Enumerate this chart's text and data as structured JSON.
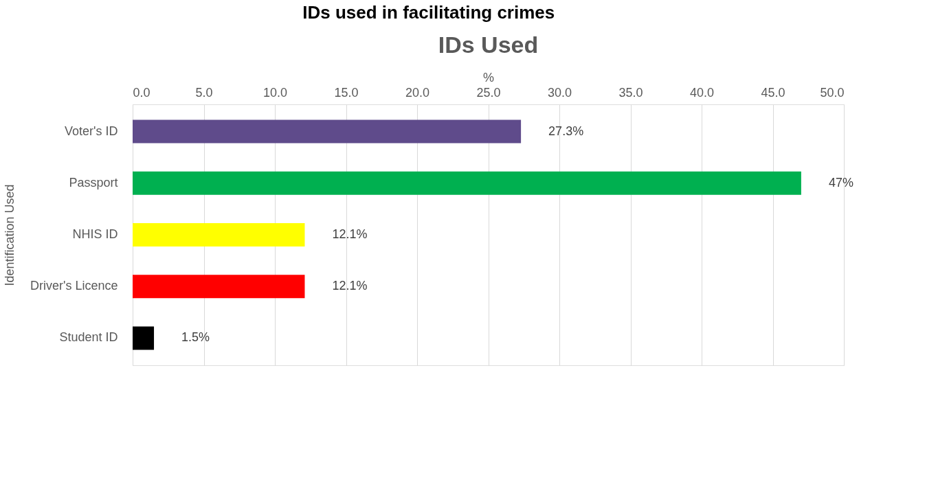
{
  "chart_data": {
    "type": "bar",
    "orientation": "horizontal",
    "title": "IDs used in facilitating crimes",
    "subtitle": "IDs Used",
    "xlabel": "%",
    "ylabel": "Identification Used",
    "categories": [
      "Voter's ID",
      "Passport",
      "NHIS ID",
      "Driver's Licence",
      "Student ID"
    ],
    "values": [
      27.3,
      47,
      12.1,
      12.1,
      1.5
    ],
    "colors": [
      "#5f4b8b",
      "#00b050",
      "#ffff00",
      "#ff0000",
      "#000000"
    ],
    "value_labels": [
      "27.3%",
      "47%",
      "12.1%",
      "12.1%",
      "1.5%"
    ],
    "xlim": [
      0,
      50
    ],
    "xticks": [
      {
        "value": 0,
        "label": "0.0"
      },
      {
        "value": 5,
        "label": "5.0"
      },
      {
        "value": 10,
        "label": "10.0"
      },
      {
        "value": 15,
        "label": "15.0"
      },
      {
        "value": 20,
        "label": "20.0"
      },
      {
        "value": 25,
        "label": "25.0"
      },
      {
        "value": 30,
        "label": "30.0"
      },
      {
        "value": 35,
        "label": "35.0"
      },
      {
        "value": 40,
        "label": "40.0"
      },
      {
        "value": 45,
        "label": "45.0"
      },
      {
        "value": 50,
        "label": "50.0"
      }
    ],
    "grid": "x"
  }
}
